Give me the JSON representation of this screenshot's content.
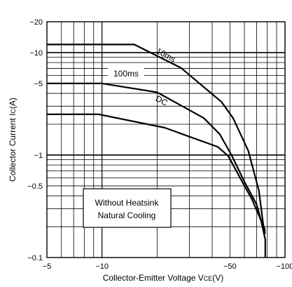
{
  "chart_data": {
    "type": "line",
    "title": "",
    "xlabel": "Collector-Emitter Voltage V",
    "xlabel_sub": "CE",
    "xlabel_unit": "(V)",
    "ylabel": "Collector Current I",
    "ylabel_sub": "C",
    "ylabel_unit": "(A)",
    "x_scale": "log",
    "y_scale": "log",
    "xlim": [
      -5,
      -100
    ],
    "ylim": [
      -0.1,
      -20
    ],
    "x_ticks": [
      {
        "value": -5,
        "label": "−5"
      },
      {
        "value": -10,
        "label": "−10"
      },
      {
        "value": -50,
        "label": "−50"
      },
      {
        "value": -100,
        "label": "−100"
      }
    ],
    "y_ticks": [
      {
        "value": -0.1,
        "label": "−0.1"
      },
      {
        "value": -0.5,
        "label": "−0.5"
      },
      {
        "value": -1,
        "label": "−1"
      },
      {
        "value": -5,
        "label": "−5"
      },
      {
        "value": -10,
        "label": "−10"
      },
      {
        "value": -20,
        "label": "−20"
      }
    ],
    "grid": true,
    "series": [
      {
        "name": "10ms",
        "x": [
          -5,
          -15,
          -27,
          -45,
          -52,
          -63,
          -72,
          -76,
          -78
        ],
        "y": [
          -12,
          -12,
          -7.1,
          -3.3,
          -2.3,
          -1.1,
          -0.45,
          -0.21,
          -0.18
        ]
      },
      {
        "name": "100ms",
        "x": [
          -5,
          -10,
          -20,
          -36,
          -44,
          -51,
          -60,
          -70,
          -75,
          -78
        ],
        "y": [
          -5,
          -5,
          -4.1,
          -2.3,
          -1.6,
          -1.0,
          -0.55,
          -0.33,
          -0.21,
          -0.17
        ]
      },
      {
        "name": "DC",
        "x": [
          -5,
          -9.6,
          -22,
          -43,
          -49,
          -58,
          -66,
          -74,
          -78,
          -78
        ],
        "y": [
          -2.5,
          -2.5,
          -1.85,
          -1.2,
          -0.98,
          -0.56,
          -0.37,
          -0.23,
          -0.15,
          -0.1
        ]
      }
    ],
    "annotation": {
      "line1": "Without Heatsink",
      "line2": "Natural Cooling"
    }
  }
}
